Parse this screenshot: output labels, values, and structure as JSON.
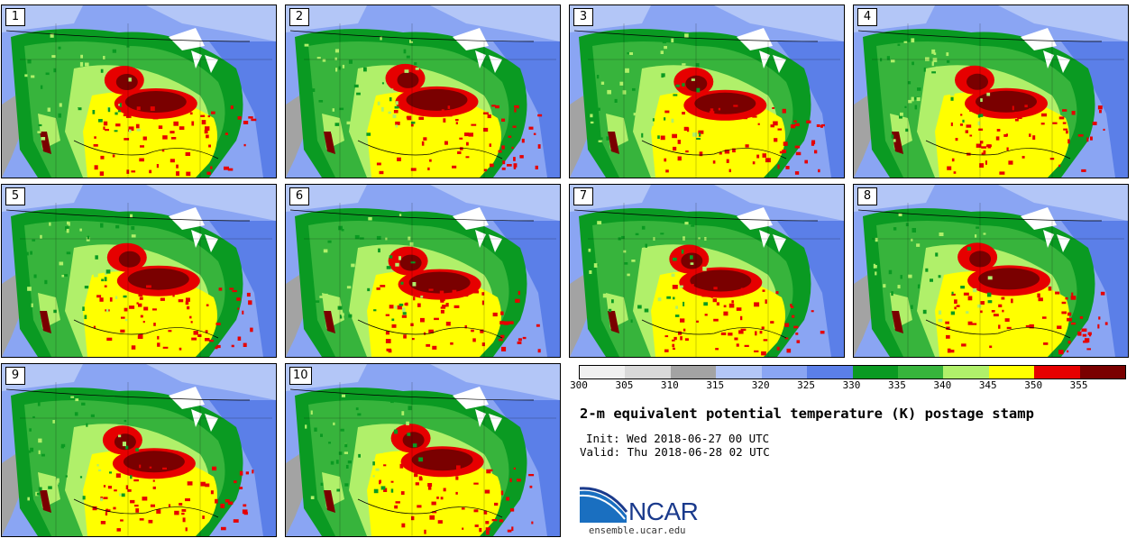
{
  "figure": {
    "title": "2-m equivalent potential temperature (K) postage stamp",
    "init": "Init: Wed 2018-06-27 00 UTC",
    "valid": "Valid: Thu 2018-06-28 02 UTC",
    "logo": "NCAR",
    "url": "ensemble.ucar.edu"
  },
  "members": [
    "1",
    "2",
    "3",
    "4",
    "5",
    "6",
    "7",
    "8",
    "9",
    "10"
  ],
  "colorbar": {
    "units": "K",
    "ticks": [
      "300",
      "305",
      "310",
      "315",
      "320",
      "325",
      "330",
      "335",
      "340",
      "345",
      "350",
      "355"
    ],
    "colors": [
      "#f0f0f0",
      "#d9d9d9",
      "#a3a3a3",
      "#b3c6f7",
      "#8aa5f3",
      "#5b7fe8",
      "#0a9a22",
      "#37b43c",
      "#b0f06a",
      "#ffff00",
      "#e60000",
      "#7a0000"
    ]
  },
  "map_colors": {
    "land_base": "#5b7fe8",
    "cool": "#8aa5f3",
    "pale": "#b3c6f7",
    "ocean_gray": "#a3a3a3",
    "dark_green": "#0a9a22",
    "green": "#37b43c",
    "light_green": "#b0f06a",
    "yellow": "#ffff00",
    "red": "#e60000",
    "dark_red": "#7a0000",
    "lakes": "#ffffff"
  }
}
